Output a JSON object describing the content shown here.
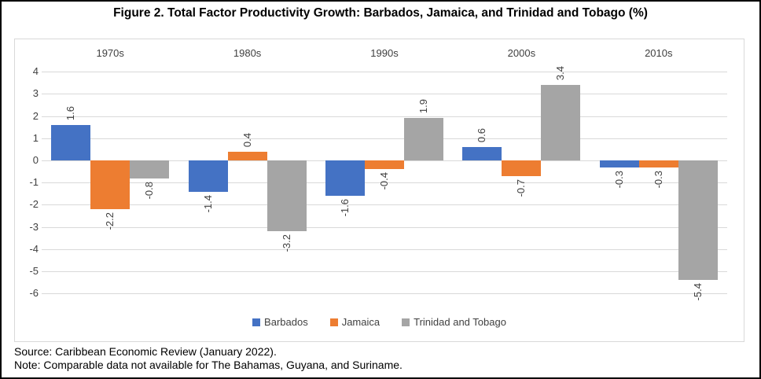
{
  "figure": {
    "title": "Figure 2. Total Factor Productivity Growth: Barbados, Jamaica, and Trinidad and Tobago (%)",
    "source_line": "Source: Caribbean Economic Review (January 2022).",
    "note_line": "Note: Comparable data not available for The Bahamas, Guyana, and Suriname."
  },
  "chart_data": {
    "type": "bar",
    "title": "",
    "xlabel": "",
    "ylabel": "",
    "categories": [
      "1970s",
      "1980s",
      "1990s",
      "2000s",
      "2010s"
    ],
    "series": [
      {
        "name": "Barbados",
        "color": "#4472C4",
        "values": [
          1.6,
          -1.4,
          -1.6,
          0.6,
          -0.3
        ]
      },
      {
        "name": "Jamaica",
        "color": "#ED7D31",
        "values": [
          -2.2,
          0.4,
          -0.4,
          -0.7,
          -0.3
        ]
      },
      {
        "name": "Trinidad and Tobago",
        "color": "#A5A5A5",
        "values": [
          -0.8,
          -3.2,
          1.9,
          3.4,
          -5.4
        ]
      }
    ],
    "ylim": [
      -6,
      4
    ],
    "yticks": [
      4,
      3,
      2,
      1,
      0,
      -1,
      -2,
      -3,
      -4,
      -5,
      -6
    ],
    "grid": true,
    "gridline_color": "#D9D9D9",
    "data_labels": "rotated, one decimal, outside end",
    "legend_position": "bottom"
  }
}
